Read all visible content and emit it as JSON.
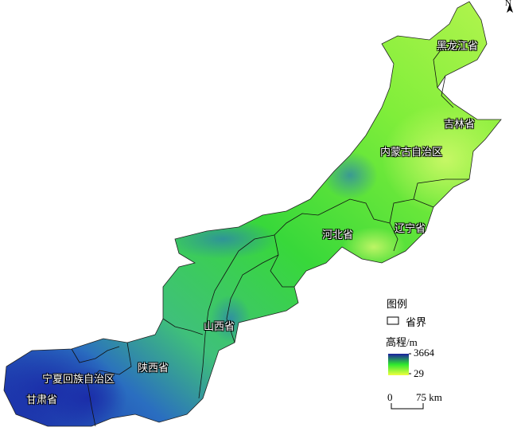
{
  "map": {
    "north_arrow": "N",
    "provinces": [
      {
        "name": "黑龙江省"
      },
      {
        "name": "吉林省"
      },
      {
        "name": "内蒙古自治区"
      },
      {
        "name": "辽宁省"
      },
      {
        "name": "河北省"
      },
      {
        "name": "山西省"
      },
      {
        "name": "陕西省"
      },
      {
        "name": "宁夏回族自治区"
      },
      {
        "name": "甘肃省"
      }
    ]
  },
  "legend": {
    "title": "图例",
    "boundary_label": "省界",
    "elevation_title": "高程/m",
    "max": "3664",
    "min": "29",
    "colors": {
      "high": "#1a1fa0",
      "mid": "#2ee82e",
      "low": "#f0ff40"
    },
    "scale_start": "0",
    "scale_end": "75 km"
  }
}
